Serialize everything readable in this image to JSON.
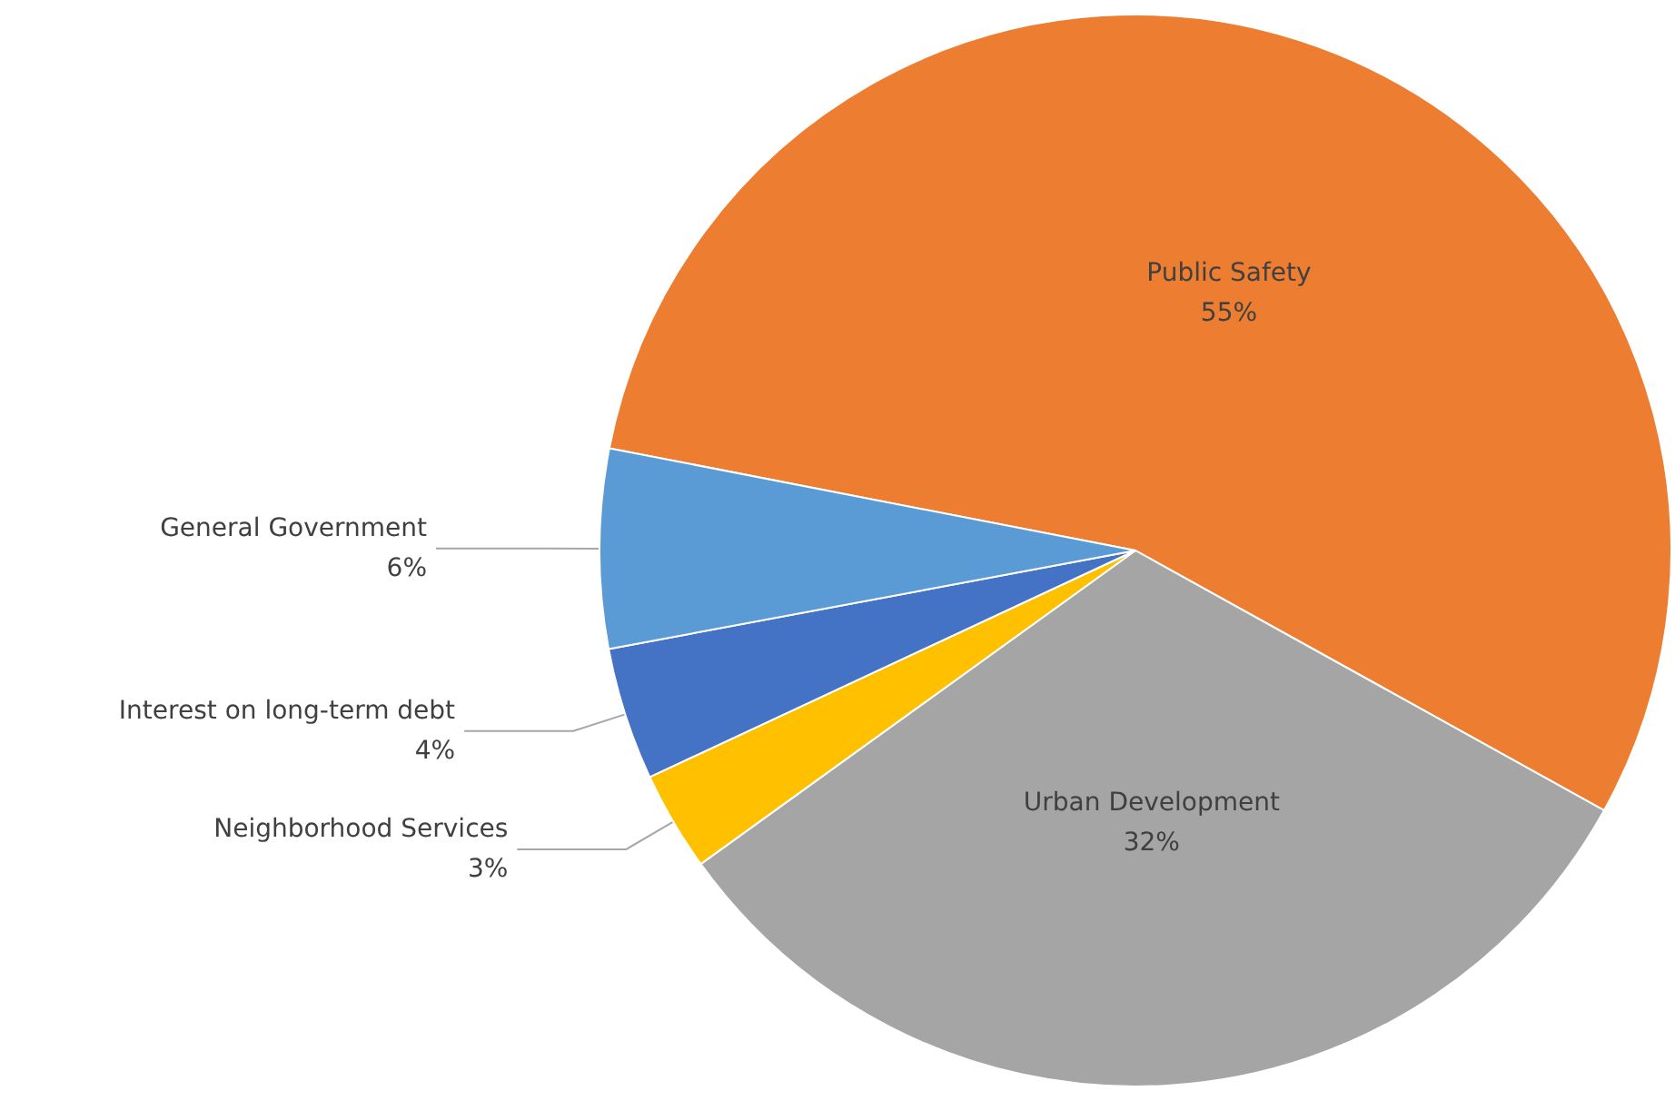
{
  "chart_data": {
    "type": "pie",
    "categories": [
      "Public Safety",
      "Urban Development",
      "Neighborhood Services",
      "Interest on long-term debt",
      "General Government"
    ],
    "values": [
      55,
      32,
      3,
      4,
      6
    ],
    "value_labels": [
      "55%",
      "32%",
      "3%",
      "4%",
      "6%"
    ],
    "colors": [
      "#ed7d31",
      "#a5a5a5",
      "#ffc000",
      "#4472c4",
      "#5b9bd5"
    ],
    "legend": false
  }
}
